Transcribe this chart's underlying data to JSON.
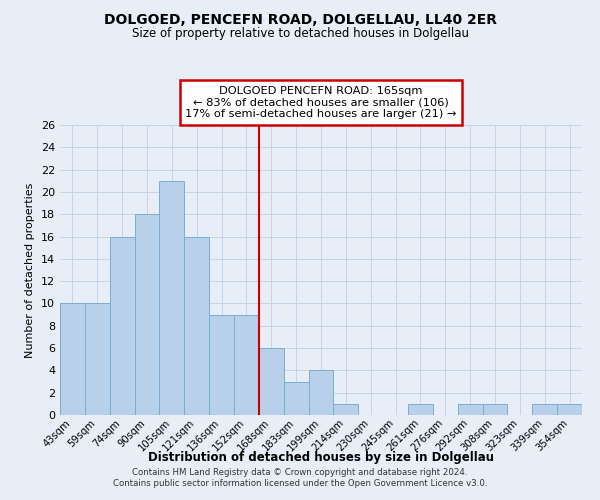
{
  "title": "DOLGOED, PENCEFN ROAD, DOLGELLAU, LL40 2ER",
  "subtitle": "Size of property relative to detached houses in Dolgellau",
  "xlabel": "Distribution of detached houses by size in Dolgellau",
  "ylabel": "Number of detached properties",
  "categories": [
    "43sqm",
    "59sqm",
    "74sqm",
    "90sqm",
    "105sqm",
    "121sqm",
    "136sqm",
    "152sqm",
    "168sqm",
    "183sqm",
    "199sqm",
    "214sqm",
    "230sqm",
    "245sqm",
    "261sqm",
    "276sqm",
    "292sqm",
    "308sqm",
    "323sqm",
    "339sqm",
    "354sqm"
  ],
  "values": [
    10,
    10,
    16,
    18,
    21,
    16,
    9,
    9,
    6,
    3,
    4,
    1,
    0,
    0,
    1,
    0,
    1,
    1,
    0,
    1,
    1
  ],
  "bar_color": "#b8d0ea",
  "bar_edge_color": "#7aadd4",
  "vline_x_index": 7.5,
  "vline_color": "#cc0000",
  "annotation_title": "DOLGOED PENCEFN ROAD: 165sqm",
  "annotation_line1": "← 83% of detached houses are smaller (106)",
  "annotation_line2": "17% of semi-detached houses are larger (21) →",
  "annotation_box_color": "#ffffff",
  "annotation_box_edge_color": "#cc0000",
  "ylim": [
    0,
    26
  ],
  "yticks": [
    0,
    2,
    4,
    6,
    8,
    10,
    12,
    14,
    16,
    18,
    20,
    22,
    24,
    26
  ],
  "grid_color": "#c8d4e4",
  "background_color": "#e8eef8",
  "footer_line1": "Contains HM Land Registry data © Crown copyright and database right 2024.",
  "footer_line2": "Contains public sector information licensed under the Open Government Licence v3.0."
}
